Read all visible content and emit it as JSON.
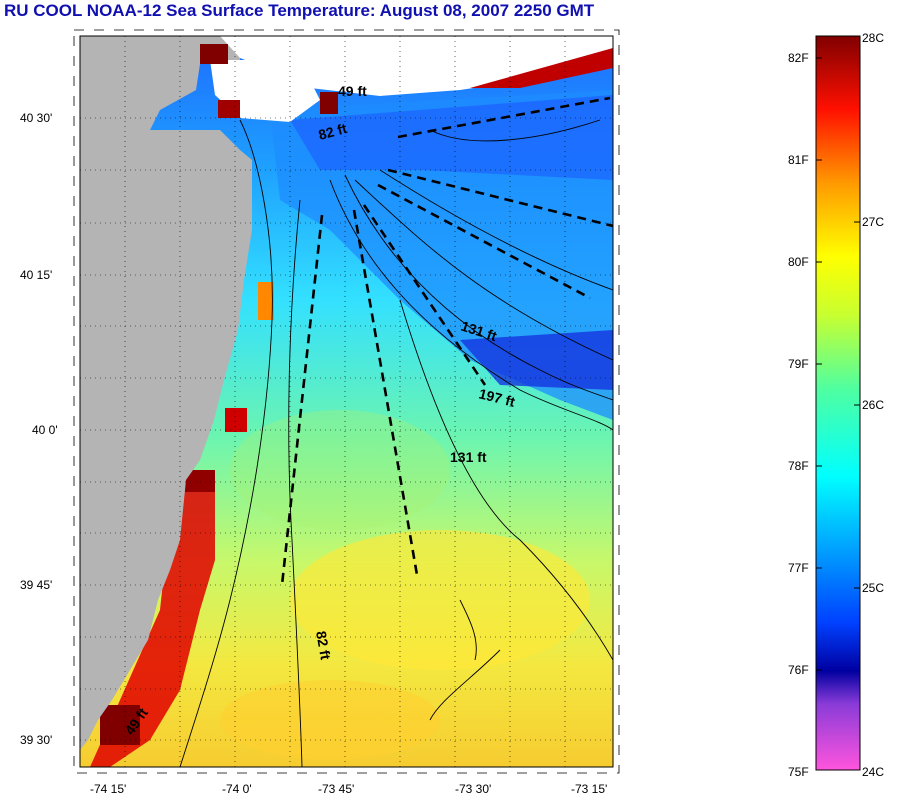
{
  "title": "RU COOL  NOAA-12  Sea Surface Temperature:  August 08, 2007 2250 GMT",
  "map": {
    "lat_ticks": [
      "40 30'",
      "40 15'",
      "40 0'",
      "39 45'",
      "39 30'"
    ],
    "lon_ticks": [
      "-74 15'",
      "-74 0'",
      "-73 45'",
      "-73 30'",
      "-73 15'"
    ],
    "depth_labels": [
      "49 ft",
      "82 ft",
      "131 ft",
      "197 ft",
      "131 ft",
      "82 ft",
      "49 ft"
    ],
    "land_color": "#b4b4b4"
  },
  "colorbar": {
    "fahrenheit_labels": [
      "82F",
      "81F",
      "80F",
      "79F",
      "78F",
      "77F",
      "76F",
      "75F"
    ],
    "celsius_labels": [
      "28C",
      "27C",
      "26C",
      "25C",
      "24C"
    ],
    "colors": [
      "#ff33cc",
      "#0000cc",
      "#0066ff",
      "#00ffff",
      "#66ff66",
      "#ffff00",
      "#ff8800",
      "#ff0000",
      "#800000"
    ]
  }
}
